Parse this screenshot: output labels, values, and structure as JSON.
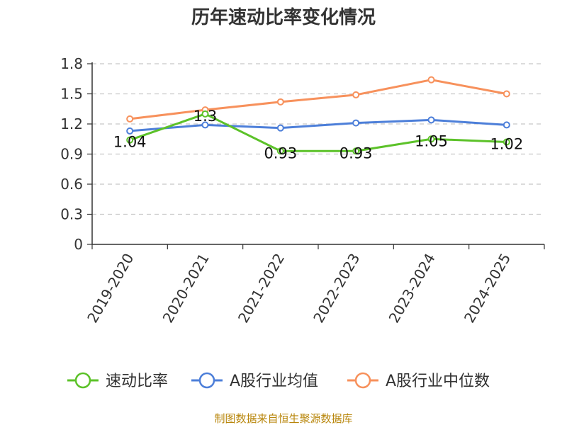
{
  "chart_data": {
    "type": "line",
    "title": "历年速动比率变化情况",
    "categories": [
      "2019-2020",
      "2020-2021",
      "2021-2022",
      "2022-2023",
      "2023-2024",
      "2024-2025"
    ],
    "ylim": [
      0,
      1.8
    ],
    "yticks": [
      "0",
      "0.3",
      "0.6",
      "0.9",
      "1.2",
      "1.5",
      "1.8"
    ],
    "grid": true,
    "legend_position": "bottom",
    "series": [
      {
        "name": "速动比率",
        "color": "#5cc229",
        "values": [
          1.04,
          1.3,
          0.93,
          0.93,
          1.05,
          1.02
        ],
        "labels": [
          "1.04",
          "1.3",
          "0.93",
          "0.93",
          "1.05",
          "1.02"
        ]
      },
      {
        "name": "A股行业均值",
        "color": "#4d7fd9",
        "values": [
          1.13,
          1.19,
          1.16,
          1.21,
          1.24,
          1.19
        ]
      },
      {
        "name": "A股行业中位数",
        "color": "#f7915c",
        "values": [
          1.25,
          1.34,
          1.42,
          1.49,
          1.64,
          1.5
        ]
      }
    ]
  },
  "source_text": "制图数据来自恒生聚源数据库"
}
